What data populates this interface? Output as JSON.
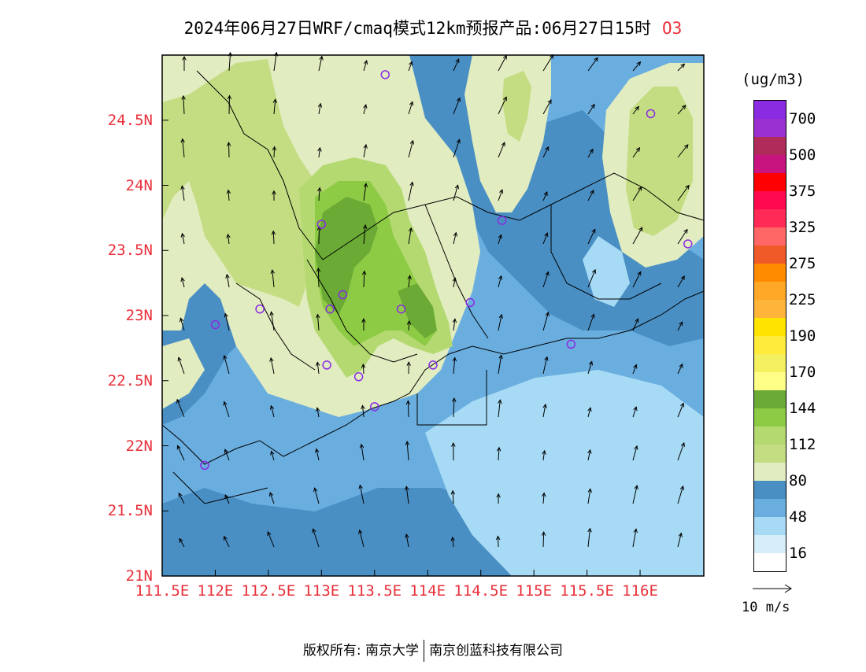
{
  "title": {
    "text": "2024年06月27日WRF/cmaq模式12km预报产品:06月27日15时",
    "species": "O3"
  },
  "map": {
    "lon_range": [
      111.5,
      116.6
    ],
    "lat_range": [
      21.0,
      25.0
    ],
    "lat_labels": [
      "24.5N",
      "24N",
      "23.5N",
      "23N",
      "22.5N",
      "22N",
      "21.5N",
      "21N"
    ],
    "lat_values": [
      24.5,
      24.0,
      23.5,
      23.0,
      22.5,
      22.0,
      21.5,
      21.0
    ],
    "lon_labels": [
      "111.5E",
      "112E",
      "112.5E",
      "113E",
      "113.5E",
      "114E",
      "114.5E",
      "115E",
      "115.5E",
      "116E"
    ],
    "lon_values": [
      111.5,
      112.0,
      112.5,
      113.0,
      113.5,
      114.0,
      114.5,
      115.0,
      115.5,
      116.0
    ],
    "stations_lonlat": [
      [
        113.6,
        24.85
      ],
      [
        116.1,
        24.55
      ],
      [
        113.0,
        23.7
      ],
      [
        114.7,
        23.73
      ],
      [
        116.45,
        23.55
      ],
      [
        112.42,
        23.05
      ],
      [
        113.08,
        23.05
      ],
      [
        113.2,
        23.16
      ],
      [
        113.75,
        23.05
      ],
      [
        114.4,
        23.1
      ],
      [
        112.0,
        22.93
      ],
      [
        115.35,
        22.78
      ],
      [
        113.05,
        22.62
      ],
      [
        113.35,
        22.53
      ],
      [
        114.05,
        22.62
      ],
      [
        113.5,
        22.3
      ],
      [
        111.9,
        21.85
      ]
    ]
  },
  "colorbar": {
    "unit": "(ug/m3)",
    "colors": [
      "#8a2be2",
      "#9b30d0",
      "#b02a5a",
      "#c8147e",
      "#ff0000",
      "#ff0a50",
      "#ff2a55",
      "#ff6666",
      "#f05a28",
      "#ff8c00",
      "#ffa726",
      "#ffb43a",
      "#ffe400",
      "#ffeb3b",
      "#f4f060",
      "#ffff88",
      "#6aaa35",
      "#8ecb45",
      "#b4d970",
      "#c4dd82",
      "#e1ecc0",
      "#4a8fc4",
      "#6aaee0",
      "#a6daf5",
      "#d6eefa",
      "#ffffff"
    ],
    "labels": [
      "700",
      "500",
      "375",
      "325",
      "275",
      "225",
      "190",
      "170",
      "144",
      "112",
      "80",
      "48",
      "16"
    ]
  },
  "wind_reference": {
    "label": "10 m/s"
  },
  "footer": {
    "left": "版权所有: 南京大学",
    "right": "南京创蓝科技有限公司"
  }
}
